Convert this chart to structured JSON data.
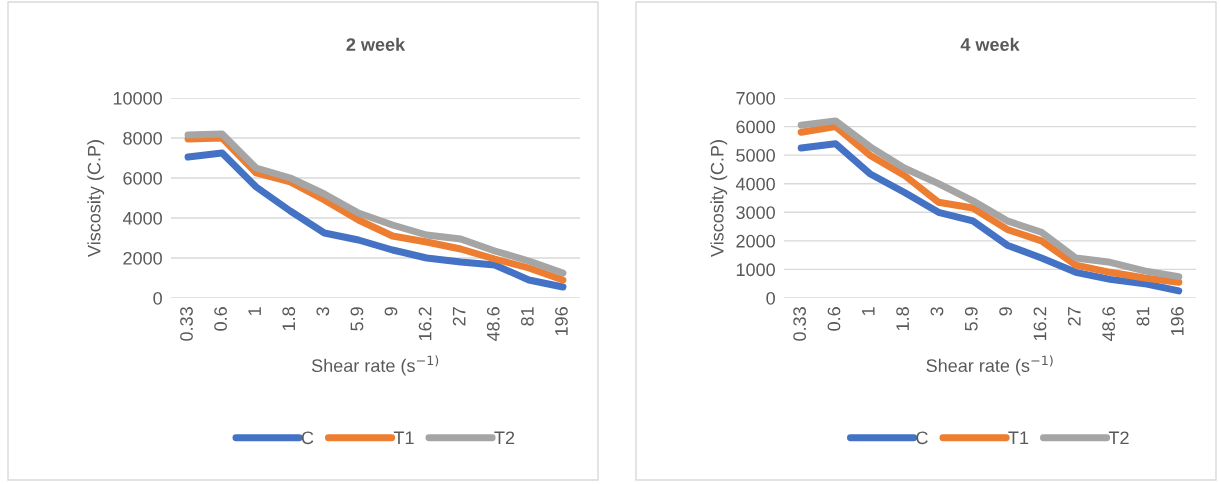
{
  "chart_data": [
    {
      "type": "line",
      "title": "2 week",
      "xlabel": "Shear rate (s$^{−1)}$",
      "ylabel": "Viscosity (C.P)",
      "categories": [
        "0.33",
        "0.6",
        "1",
        "1.8",
        "3",
        "5.9",
        "9",
        "16.2",
        "27",
        "48.6",
        "81",
        "196"
      ],
      "ylim": [
        0,
        10000
      ],
      "yticks": [
        0,
        2000,
        4000,
        6000,
        8000,
        10000
      ],
      "grid": "y",
      "legend": "bottom",
      "series": [
        {
          "name": "C",
          "color": "#4472c4",
          "values": [
            7050,
            7250,
            5550,
            4350,
            3250,
            2900,
            2400,
            2000,
            1800,
            1650,
            900,
            550
          ]
        },
        {
          "name": "T1",
          "color": "#ed7d31",
          "values": [
            7950,
            8000,
            6250,
            5800,
            4900,
            3900,
            3100,
            2800,
            2450,
            1950,
            1500,
            900
          ]
        },
        {
          "name": "T2",
          "color": "#a5a5a5",
          "values": [
            8150,
            8200,
            6500,
            6000,
            5200,
            4250,
            3650,
            3150,
            2950,
            2350,
            1850,
            1250
          ]
        }
      ]
    },
    {
      "type": "line",
      "title": "4 week",
      "xlabel": "Shear rate (s$^{−1)}$",
      "ylabel": "Viscosity (C.P)",
      "categories": [
        "0.33",
        "0.6",
        "1",
        "1.8",
        "3",
        "5.9",
        "9",
        "16.2",
        "27",
        "48.6",
        "81",
        "196"
      ],
      "ylim": [
        0,
        7000
      ],
      "yticks": [
        0,
        1000,
        2000,
        3000,
        4000,
        5000,
        6000,
        7000
      ],
      "grid": "y",
      "legend": "bottom",
      "series": [
        {
          "name": "C",
          "color": "#4472c4",
          "values": [
            5250,
            5400,
            4350,
            3700,
            3000,
            2700,
            1850,
            1400,
            900,
            650,
            500,
            250
          ]
        },
        {
          "name": "T1",
          "color": "#ed7d31",
          "values": [
            5800,
            6000,
            5000,
            4300,
            3350,
            3150,
            2400,
            2000,
            1150,
            900,
            700,
            550
          ]
        },
        {
          "name": "T2",
          "color": "#a5a5a5",
          "values": [
            6050,
            6200,
            5300,
            4550,
            4000,
            3400,
            2700,
            2300,
            1400,
            1250,
            950,
            750
          ]
        }
      ]
    }
  ]
}
